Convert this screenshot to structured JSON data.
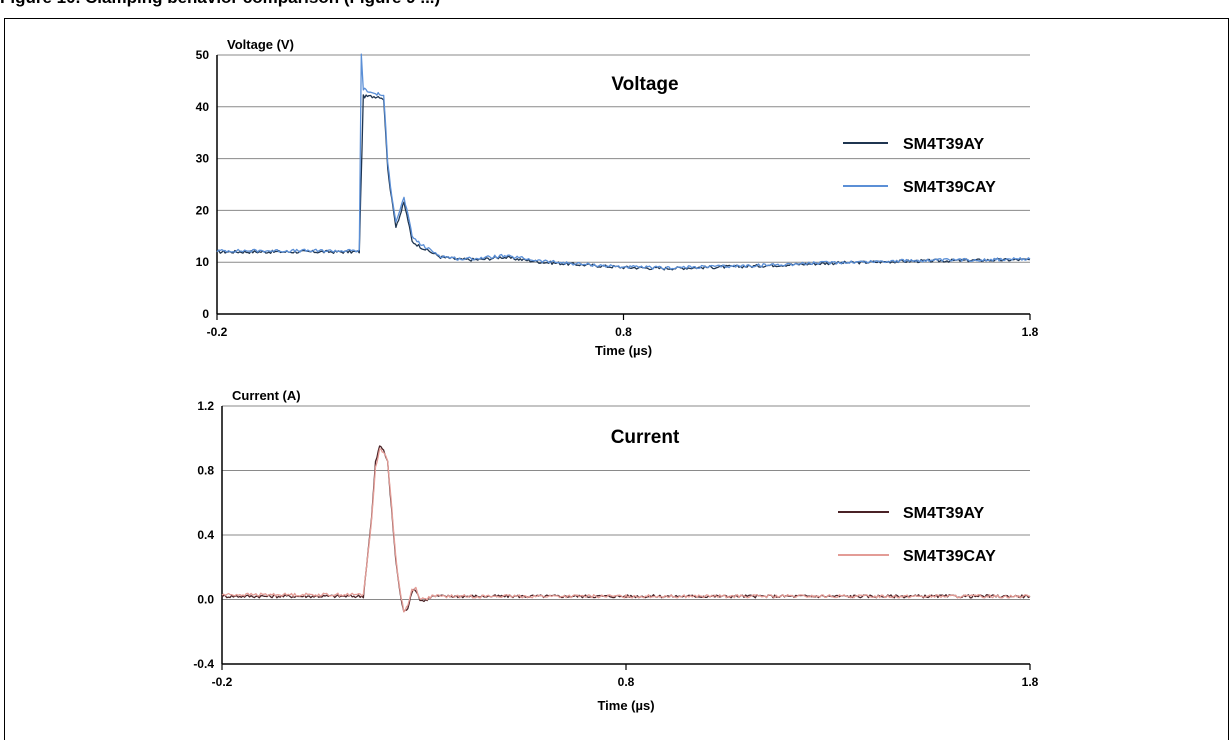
{
  "header": {
    "caption": "Figure 10. Clamping behavior comparison (Figure 9 ...)"
  },
  "chart_data": [
    {
      "type": "line",
      "title": "Voltage",
      "xlabel": "Time (µs)",
      "ylabel": "Voltage (V)",
      "xlim": [
        -0.2,
        1.8
      ],
      "ylim": [
        0,
        50
      ],
      "x_ticks": [
        "-0.2",
        "0.8",
        "1.8"
      ],
      "y_ticks": [
        "0",
        "10",
        "20",
        "30",
        "40",
        "50"
      ],
      "grid": true,
      "legend_position": "right",
      "series": [
        {
          "name": "SM4T39AY",
          "color": "#1f3550",
          "x": [
            -0.2,
            0.0,
            0.15,
            0.16,
            0.17,
            0.19,
            0.2,
            0.21,
            0.215,
            0.22,
            0.23,
            0.24,
            0.25,
            0.26,
            0.27,
            0.28,
            0.3,
            0.35,
            0.4,
            0.45,
            0.5,
            0.55,
            0.6,
            0.7,
            0.8,
            0.9,
            1.0,
            1.1,
            1.2,
            1.3,
            1.4,
            1.5,
            1.6,
            1.7,
            1.8
          ],
          "y": [
            12,
            12,
            12,
            42,
            42,
            42,
            42,
            41.5,
            35,
            28,
            22,
            17,
            19,
            21.5,
            18,
            14,
            13,
            11,
            10.5,
            10.5,
            11,
            10.5,
            10,
            9.5,
            9,
            8.8,
            9,
            9.2,
            9.5,
            9.8,
            10,
            10.2,
            10.3,
            10.4,
            10.5
          ]
        },
        {
          "name": "SM4T39CAY",
          "color": "#5b8fd6",
          "x": [
            -0.2,
            0.0,
            0.15,
            0.155,
            0.16,
            0.17,
            0.19,
            0.2,
            0.21,
            0.215,
            0.22,
            0.23,
            0.24,
            0.25,
            0.26,
            0.27,
            0.28,
            0.3,
            0.35,
            0.4,
            0.45,
            0.5,
            0.55,
            0.6,
            0.7,
            0.8,
            0.9,
            1.0,
            1.1,
            1.2,
            1.3,
            1.4,
            1.5,
            1.6,
            1.7,
            1.8
          ],
          "y": [
            12.2,
            12.2,
            12.2,
            50,
            43.5,
            43,
            42.5,
            42.5,
            42,
            36,
            29,
            23,
            18,
            20,
            22.5,
            19,
            15,
            13.5,
            11.2,
            10.6,
            10.8,
            11.2,
            10.8,
            10.2,
            9.6,
            9.1,
            8.9,
            9.1,
            9.3,
            9.6,
            9.9,
            10.1,
            10.3,
            10.4,
            10.5,
            10.6
          ]
        }
      ]
    },
    {
      "type": "line",
      "title": "Current",
      "xlabel": "Time (µs)",
      "ylabel": "Current (A)",
      "xlim": [
        -0.2,
        1.8
      ],
      "ylim": [
        -0.4,
        1.2
      ],
      "x_ticks": [
        "-0.2",
        "0.8",
        "1.8"
      ],
      "y_ticks": [
        "-0.4",
        "0.0",
        "0.4",
        "0.8",
        "1.2"
      ],
      "grid": true,
      "legend_position": "right",
      "series": [
        {
          "name": "SM4T39AY",
          "color": "#4a2226",
          "x": [
            -0.2,
            0.0,
            0.15,
            0.17,
            0.18,
            0.19,
            0.2,
            0.21,
            0.22,
            0.23,
            0.24,
            0.25,
            0.26,
            0.27,
            0.28,
            0.29,
            0.3,
            0.32,
            0.4,
            0.6,
            0.8,
            1.0,
            1.2,
            1.4,
            1.6,
            1.8
          ],
          "y": [
            0.02,
            0.02,
            0.02,
            0.5,
            0.85,
            0.95,
            0.93,
            0.85,
            0.55,
            0.25,
            0.05,
            -0.08,
            -0.05,
            0.05,
            0.06,
            0.0,
            -0.01,
            0.02,
            0.02,
            0.02,
            0.02,
            0.02,
            0.02,
            0.02,
            0.02,
            0.02
          ]
        },
        {
          "name": "SM4T39CAY",
          "color": "#e39c96",
          "x": [
            -0.2,
            0.0,
            0.15,
            0.17,
            0.18,
            0.19,
            0.2,
            0.21,
            0.22,
            0.23,
            0.24,
            0.25,
            0.26,
            0.27,
            0.28,
            0.29,
            0.3,
            0.32,
            0.4,
            0.6,
            0.8,
            1.0,
            1.2,
            1.4,
            1.6,
            1.8
          ],
          "y": [
            0.03,
            0.03,
            0.03,
            0.48,
            0.82,
            0.93,
            0.92,
            0.86,
            0.57,
            0.27,
            0.06,
            -0.07,
            -0.04,
            0.06,
            0.07,
            0.01,
            0.0,
            0.02,
            0.02,
            0.02,
            0.02,
            0.02,
            0.02,
            0.02,
            0.02,
            0.02
          ]
        }
      ]
    }
  ]
}
